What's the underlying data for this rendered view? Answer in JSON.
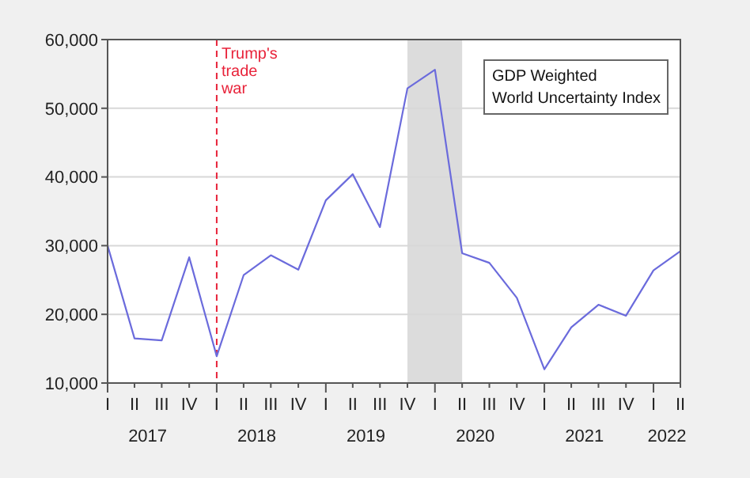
{
  "chart_data": {
    "type": "line",
    "title": "GDP Weighted World Uncertainty Index",
    "x": [
      "2017-01",
      "2017-04",
      "2017-07",
      "2017-10",
      "2018-01",
      "2018-04",
      "2018-07",
      "2018-10",
      "2019-01",
      "2019-04",
      "2019-07",
      "2019-10",
      "2020-01",
      "2020-04",
      "2020-07",
      "2020-10",
      "2021-01",
      "2021-04",
      "2021-07",
      "2021-10",
      "2022-01",
      "2022-04"
    ],
    "series": [
      {
        "color": "#6b6bdc",
        "values": [
          30000,
          16500,
          16200,
          28300,
          13900,
          25700,
          28600,
          26500,
          36600,
          40400,
          32700,
          52900,
          55600,
          28900,
          27500,
          22400,
          12000,
          18100,
          21400,
          19800,
          26400,
          29200
        ]
      }
    ],
    "annotations": [
      "I",
      "II",
      "III",
      "IV",
      "I",
      "II",
      "III",
      "IV",
      "I",
      "II",
      "III",
      "IV",
      "I",
      "II",
      "III",
      "IV",
      "I",
      "II",
      "III",
      "IV",
      "I",
      "II"
    ],
    "xlim": [
      "2017-01",
      "2022-04"
    ],
    "xticks": [
      {
        "value": "2017-05-15",
        "label": "2017"
      },
      {
        "value": "2018-05-15",
        "label": "2018"
      },
      {
        "value": "2019-05-15",
        "label": "2019"
      },
      {
        "value": "2020-05-15",
        "label": "2020"
      },
      {
        "value": "2021-05-15",
        "label": "2021"
      },
      {
        "value": "2022-02-15",
        "label": "2022"
      }
    ],
    "ylim": [
      10000,
      60000
    ],
    "yticks": [
      {
        "value": 10000,
        "label": "10,000"
      },
      {
        "value": 20000,
        "label": "20,000"
      },
      {
        "value": 30000,
        "label": "30,000"
      },
      {
        "value": 40000,
        "label": "40,000"
      },
      {
        "value": 50000,
        "label": "50,000"
      },
      {
        "value": 60000,
        "label": "60,000"
      }
    ],
    "grid": "y",
    "legend": false,
    "marker": "none",
    "line_style": "solid",
    "ref_lines": [
      {
        "axis": "x",
        "value": "2018-01",
        "label": "Trump's trade war",
        "color": "#e8233a",
        "line_style": "dashed"
      }
    ],
    "bands": [
      {
        "axis": "x",
        "from": "2019-10",
        "to": "2020-04",
        "color": "#dcdcdc"
      }
    ]
  }
}
